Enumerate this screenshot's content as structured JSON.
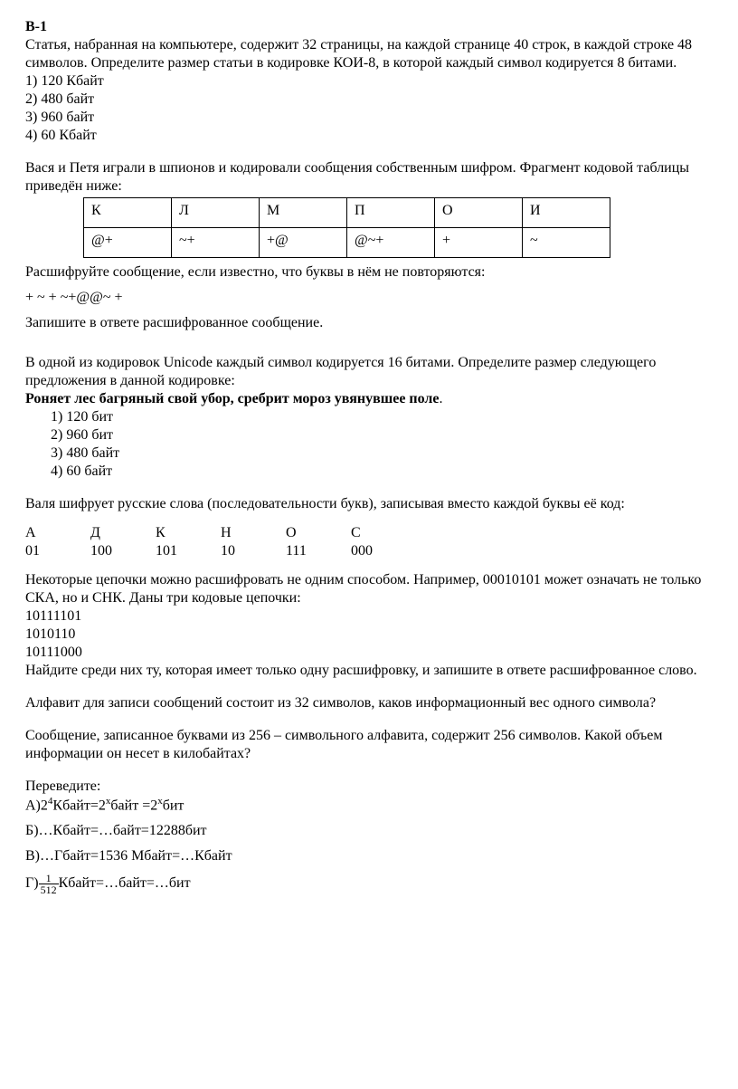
{
  "heading": "В-1",
  "q1": {
    "text": "Статья, набранная на компьютере, содержит 32 страницы, на каждой странице 40 строк, в каждой строке 48 символов. Определите размер статьи в кодировке КОИ-8, в которой каждый символ кодируется 8 битами.",
    "opts": [
      "1) 120 Кбайт",
      "2) 480 байт",
      "3) 960 байт",
      "4) 60 Кбайт"
    ]
  },
  "q2": {
    "intro": "Вася и Петя играли в шпионов и кодировали сообщения собственным шифром. Фрагмент кодовой таблицы приведён ниже:",
    "headers": [
      "К",
      "Л",
      "М",
      "П",
      "О",
      "И"
    ],
    "codes": [
      "@+",
      "~+",
      "+@",
      "@~+",
      "+",
      "~"
    ],
    "line1": "Расшифруйте сообщение, если известно, что буквы в нём не повторяются:",
    "cipher": "+ ~ + ~+@@~ +",
    "line2": "Запишите в ответе расшифрованное сообщение."
  },
  "q3": {
    "intro": "В одной из кодировок Unicode каждый символ кодируется 16 битами. Определите размер следующего предложения в данной кодировке:",
    "boldline": "Роняет лес багряный свой убор, сребрит мороз увянувшее поле",
    "period": ".",
    "opts": [
      "1) 120 бит",
      "2) 960 бит",
      "3) 480 байт",
      "4) 60 байт"
    ]
  },
  "q4": {
    "intro": "Валя шифрует русские слова (последовательности букв), записывая вместо каждой буквы её код:",
    "letters": [
      "А",
      "Д",
      "К",
      "Н",
      "О",
      "С"
    ],
    "codes": [
      "01",
      "100",
      "101",
      "10",
      "111",
      "000"
    ],
    "p1": "Некоторые цепочки можно расшифровать не одним способом. Например, 00010101 может означать не только СКА, но и СНК. Даны три кодовые цепочки:",
    "chains": [
      "10111101",
      "1010110",
      "10111000"
    ],
    "p2": "Найдите среди них ту, которая имеет только одну расшифровку, и запишите в ответе расшифрованное слово."
  },
  "q5": "Алфавит для записи сообщений состоит из 32  символов, каков информационный вес одного символа?",
  "q6": "Сообщение, записанное буквами из 256 – символьного алфавита, содержит 256 символов. Какой объем информации он несет в килобайтах?",
  "q7": {
    "title": "Переведите:",
    "a_pre": "А)2",
    "a_sup1": "4",
    "a_mid1": "Кбайт=2",
    "a_supx1": "x",
    "a_mid2": "байт =2",
    "a_supx2": "x",
    "a_end": "бит",
    "b": "Б)…Кбайт=…байт=12288бит",
    "c": "В)…Гбайт=1536 Мбайт=…Кбайт",
    "g_pre": "Г)",
    "g_num": "1",
    "g_den": "512",
    "g_rest": "Кбайт=…байт=…бит"
  }
}
